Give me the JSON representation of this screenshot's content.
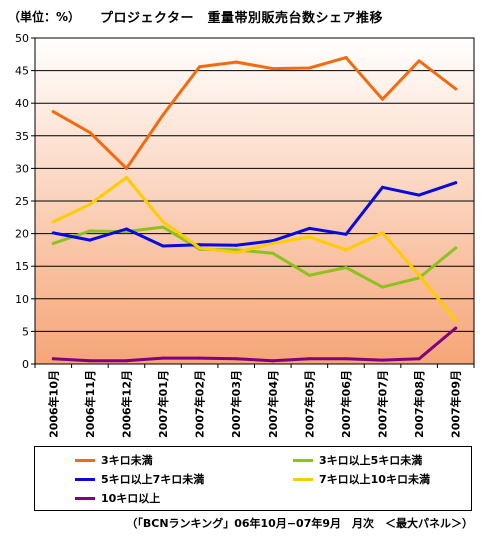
{
  "header": {
    "unit_label": "（単位：%）",
    "title": "プロジェクター　重量帯別販売台数シェア推移"
  },
  "footer": {
    "source": "（「BCNランキング」06年10月−07年9月　月次　＜最大パネル＞）"
  },
  "colors": {
    "plot_bg_top": "#ffffff",
    "plot_bg_bottom": "#f6a577",
    "grid": "#000000"
  },
  "chart_data": {
    "type": "line",
    "title": "プロジェクター　重量帯別販売台数シェア推移",
    "ylabel": "（単位：%）",
    "xlabel": "",
    "ylim": [
      0,
      50
    ],
    "yticks": [
      0,
      5,
      10,
      15,
      20,
      25,
      30,
      35,
      40,
      45,
      50
    ],
    "grid": "horizontal",
    "legend_position": "bottom",
    "categories": [
      "2006年10月",
      "2006年11月",
      "2006年12月",
      "2007年01月",
      "2007年02月",
      "2007年03月",
      "2007年04月",
      "2007年05月",
      "2007年06月",
      "2007年07月",
      "2007年08月",
      "2007年09月"
    ],
    "series": [
      {
        "name": "3キロ未満",
        "color": "#f26b10",
        "values": [
          38.7,
          35.5,
          30.0,
          38.2,
          45.6,
          46.3,
          45.3,
          45.4,
          47.0,
          40.6,
          46.5,
          42.2
        ]
      },
      {
        "name": "3キロ以上5キロ未満",
        "color": "#8cc21e",
        "values": [
          18.5,
          20.4,
          20.3,
          21.0,
          17.6,
          17.5,
          17.0,
          13.6,
          14.8,
          11.8,
          13.2,
          17.8
        ]
      },
      {
        "name": "5キロ以上7キロ未満",
        "color": "#0a0adc",
        "values": [
          20.1,
          19.0,
          20.7,
          18.1,
          18.3,
          18.2,
          18.9,
          20.8,
          19.9,
          27.1,
          25.9,
          27.8
        ]
      },
      {
        "name": "7キロ以上10キロ未満",
        "color": "#ffcc00",
        "values": [
          21.8,
          24.5,
          28.6,
          21.8,
          17.8,
          17.1,
          18.5,
          19.5,
          17.5,
          20.1,
          13.6,
          6.7
        ]
      },
      {
        "name": "10キロ以上",
        "color": "#800080",
        "values": [
          0.8,
          0.5,
          0.5,
          0.9,
          0.9,
          0.8,
          0.5,
          0.8,
          0.8,
          0.6,
          0.8,
          5.5
        ]
      }
    ]
  }
}
